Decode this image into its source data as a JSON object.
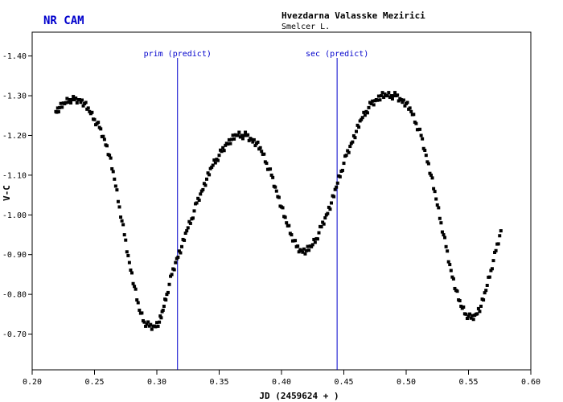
{
  "header": {
    "star_name": "NR CAM",
    "observatory": "Hvezdarna Valasske Mezirici",
    "observer": "Smelcer L."
  },
  "colors": {
    "title": "#0000cc",
    "prediction_line": "#0000cc",
    "points": "#000000",
    "frame": "#000000"
  },
  "chart_data": {
    "type": "scatter",
    "xlabel": "JD (2459624 + )",
    "ylabel": "V-C",
    "xlim": [
      0.2,
      0.6
    ],
    "ylim": [
      -0.61,
      -1.46
    ],
    "y_inverted": true,
    "xticks": [
      "0.20",
      "0.25",
      "0.30",
      "0.35",
      "0.40",
      "0.45",
      "0.50",
      "0.55",
      "0.60"
    ],
    "yticks": [
      "-1.40",
      "-1.30",
      "-1.20",
      "-1.10",
      "-1.00",
      "-0.90",
      "-0.80",
      "-0.70"
    ],
    "xtick_values": [
      0.2,
      0.25,
      0.3,
      0.35,
      0.4,
      0.45,
      0.5,
      0.55,
      0.6
    ],
    "ytick_values": [
      -1.4,
      -1.3,
      -1.2,
      -1.1,
      -1.0,
      -0.9,
      -0.8,
      -0.7
    ],
    "predictions": [
      {
        "label": "prim (predict)",
        "x": 0.3166
      },
      {
        "label": "sec (predict)",
        "x": 0.4446
      }
    ],
    "series": [
      {
        "marker": "square",
        "color": "#000000",
        "x": [
          0.219,
          0.222,
          0.226,
          0.23,
          0.234,
          0.238,
          0.242,
          0.246,
          0.25,
          0.254,
          0.258,
          0.262,
          0.266,
          0.27,
          0.274,
          0.278,
          0.282,
          0.286,
          0.29,
          0.294,
          0.298,
          0.302,
          0.305,
          0.308,
          0.312,
          0.316,
          0.32,
          0.324,
          0.328,
          0.332,
          0.336,
          0.34,
          0.344,
          0.348,
          0.352,
          0.356,
          0.36,
          0.364,
          0.368,
          0.372,
          0.376,
          0.38,
          0.384,
          0.388,
          0.392,
          0.396,
          0.4,
          0.404,
          0.408,
          0.412,
          0.416,
          0.42,
          0.424,
          0.428,
          0.432,
          0.436,
          0.44,
          0.444,
          0.448,
          0.452,
          0.456,
          0.46,
          0.464,
          0.468,
          0.472,
          0.476,
          0.48,
          0.484,
          0.488,
          0.492,
          0.496,
          0.5,
          0.504,
          0.508,
          0.512,
          0.516,
          0.52,
          0.524,
          0.528,
          0.532,
          0.536,
          0.54,
          0.544,
          0.548,
          0.552,
          0.556,
          0.56,
          0.564,
          0.568,
          0.572,
          0.576
        ],
        "y": [
          -1.26,
          -1.27,
          -1.28,
          -1.29,
          -1.29,
          -1.29,
          -1.28,
          -1.26,
          -1.24,
          -1.22,
          -1.19,
          -1.15,
          -1.09,
          -1.02,
          -0.95,
          -0.88,
          -0.82,
          -0.76,
          -0.73,
          -0.72,
          -0.72,
          -0.73,
          -0.76,
          -0.8,
          -0.85,
          -0.89,
          -0.92,
          -0.96,
          -0.99,
          -1.03,
          -1.06,
          -1.09,
          -1.12,
          -1.14,
          -1.16,
          -1.18,
          -1.19,
          -1.2,
          -1.2,
          -1.2,
          -1.19,
          -1.18,
          -1.16,
          -1.13,
          -1.1,
          -1.06,
          -1.02,
          -0.98,
          -0.95,
          -0.92,
          -0.91,
          -0.91,
          -0.92,
          -0.94,
          -0.97,
          -1.0,
          -1.03,
          -1.07,
          -1.11,
          -1.15,
          -1.18,
          -1.21,
          -1.24,
          -1.26,
          -1.28,
          -1.29,
          -1.3,
          -1.3,
          -1.3,
          -1.3,
          -1.29,
          -1.28,
          -1.26,
          -1.23,
          -1.2,
          -1.15,
          -1.1,
          -1.04,
          -0.98,
          -0.92,
          -0.86,
          -0.81,
          -0.77,
          -0.75,
          -0.74,
          -0.75,
          -0.77,
          -0.81,
          -0.86,
          -0.91,
          -0.96
        ]
      }
    ]
  }
}
